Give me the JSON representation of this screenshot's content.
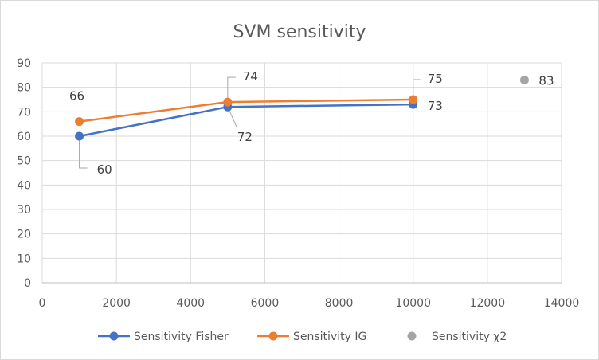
{
  "chart_data": {
    "type": "scatter",
    "title": "SVM sensitivity",
    "xlabel": "",
    "ylabel": "",
    "xlim": [
      0,
      14000
    ],
    "ylim": [
      0,
      90
    ],
    "xticks": [
      "0",
      "2000",
      "4000",
      "6000",
      "8000",
      "10000",
      "12000",
      "14000"
    ],
    "yticks": [
      "0",
      "10",
      "20",
      "30",
      "40",
      "50",
      "60",
      "70",
      "80",
      "90"
    ],
    "grid": true,
    "legend_position": "bottom",
    "series": [
      {
        "name": "Sensitivity Fisher",
        "color": "#4472C4",
        "lines": true,
        "points": [
          {
            "x": 1000,
            "y": 60,
            "label": "60"
          },
          {
            "x": 5000,
            "y": 72,
            "label": "72"
          },
          {
            "x": 10000,
            "y": 73,
            "label": "73"
          }
        ]
      },
      {
        "name": "Sensitivity IG",
        "color": "#ED7D31",
        "lines": true,
        "points": [
          {
            "x": 1000,
            "y": 66,
            "label": "66"
          },
          {
            "x": 5000,
            "y": 74,
            "label": "74"
          },
          {
            "x": 10000,
            "y": 75,
            "label": "75"
          }
        ]
      },
      {
        "name": "Sensitivity χ2",
        "color": "#A5A5A5",
        "lines": false,
        "points": [
          {
            "x": 13000,
            "y": 83,
            "label": "83"
          }
        ]
      }
    ]
  }
}
